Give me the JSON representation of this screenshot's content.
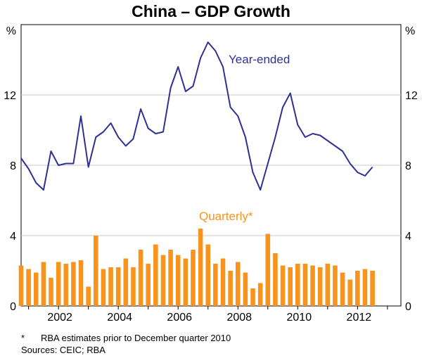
{
  "chart_data": {
    "type": "bar+line",
    "title": "China – GDP Growth",
    "y_unit_left": "%",
    "y_unit_right": "%",
    "ylim": [
      0,
      16
    ],
    "yticks": [
      0,
      4,
      8,
      12
    ],
    "x_range": [
      2000.75,
      2013.45
    ],
    "xticks": [
      2002,
      2004,
      2006,
      2008,
      2010,
      2012
    ],
    "colors": {
      "year_ended": "#2e3192",
      "quarterly": "#f7941d",
      "grid": "#c8c8c8"
    },
    "series": [
      {
        "name": "Year-ended",
        "label": "Year-ended",
        "kind": "line",
        "x": [
          2000.75,
          2001.0,
          2001.25,
          2001.5,
          2001.75,
          2002.0,
          2002.25,
          2002.5,
          2002.75,
          2003.0,
          2003.25,
          2003.5,
          2003.75,
          2004.0,
          2004.25,
          2004.5,
          2004.75,
          2005.0,
          2005.25,
          2005.5,
          2005.75,
          2006.0,
          2006.25,
          2006.5,
          2006.75,
          2007.0,
          2007.25,
          2007.5,
          2007.75,
          2008.0,
          2008.25,
          2008.5,
          2008.75,
          2009.0,
          2009.25,
          2009.5,
          2009.75,
          2010.0,
          2010.25,
          2010.5,
          2010.75,
          2011.0,
          2011.25,
          2011.5,
          2011.75,
          2012.0,
          2012.25,
          2012.5
        ],
        "values": [
          8.4,
          7.8,
          7.0,
          6.6,
          8.8,
          8.0,
          8.1,
          8.1,
          10.8,
          7.9,
          9.6,
          9.9,
          10.4,
          9.6,
          9.1,
          9.5,
          11.2,
          10.1,
          9.8,
          9.9,
          12.4,
          13.6,
          12.2,
          12.5,
          14.1,
          15.0,
          14.5,
          13.6,
          11.3,
          10.8,
          9.6,
          7.6,
          6.6,
          8.1,
          9.6,
          11.3,
          12.1,
          10.3,
          9.6,
          9.8,
          9.7,
          9.4,
          9.1,
          8.8,
          8.1,
          7.6,
          7.4,
          7.9
        ]
      },
      {
        "name": "Quarterly*",
        "label": "Quarterly*",
        "kind": "bar",
        "x": [
          2000.75,
          2001.0,
          2001.25,
          2001.5,
          2001.75,
          2002.0,
          2002.25,
          2002.5,
          2002.75,
          2003.0,
          2003.25,
          2003.5,
          2003.75,
          2004.0,
          2004.25,
          2004.5,
          2004.75,
          2005.0,
          2005.25,
          2005.5,
          2005.75,
          2006.0,
          2006.25,
          2006.5,
          2006.75,
          2007.0,
          2007.25,
          2007.5,
          2007.75,
          2008.0,
          2008.25,
          2008.5,
          2008.75,
          2009.0,
          2009.25,
          2009.5,
          2009.75,
          2010.0,
          2010.25,
          2010.5,
          2010.75,
          2011.0,
          2011.25,
          2011.5,
          2011.75,
          2012.0,
          2012.25,
          2012.5
        ],
        "values": [
          2.3,
          2.1,
          1.9,
          2.5,
          1.6,
          2.5,
          2.4,
          2.5,
          2.6,
          1.1,
          4.0,
          2.1,
          2.2,
          2.2,
          2.7,
          2.2,
          3.2,
          2.4,
          3.5,
          2.9,
          3.2,
          2.9,
          2.7,
          3.2,
          4.4,
          3.5,
          2.4,
          2.7,
          2.0,
          2.5,
          1.9,
          1.0,
          1.3,
          4.1,
          3.0,
          2.3,
          2.2,
          2.4,
          2.4,
          2.3,
          2.2,
          2.4,
          2.3,
          1.9,
          1.5,
          2.0,
          2.1,
          2.0
        ]
      }
    ]
  },
  "notes": {
    "footnote_marker": "*",
    "footnote_text": "RBA estimates prior to December quarter 2010",
    "sources": "Sources: CEIC; RBA"
  }
}
